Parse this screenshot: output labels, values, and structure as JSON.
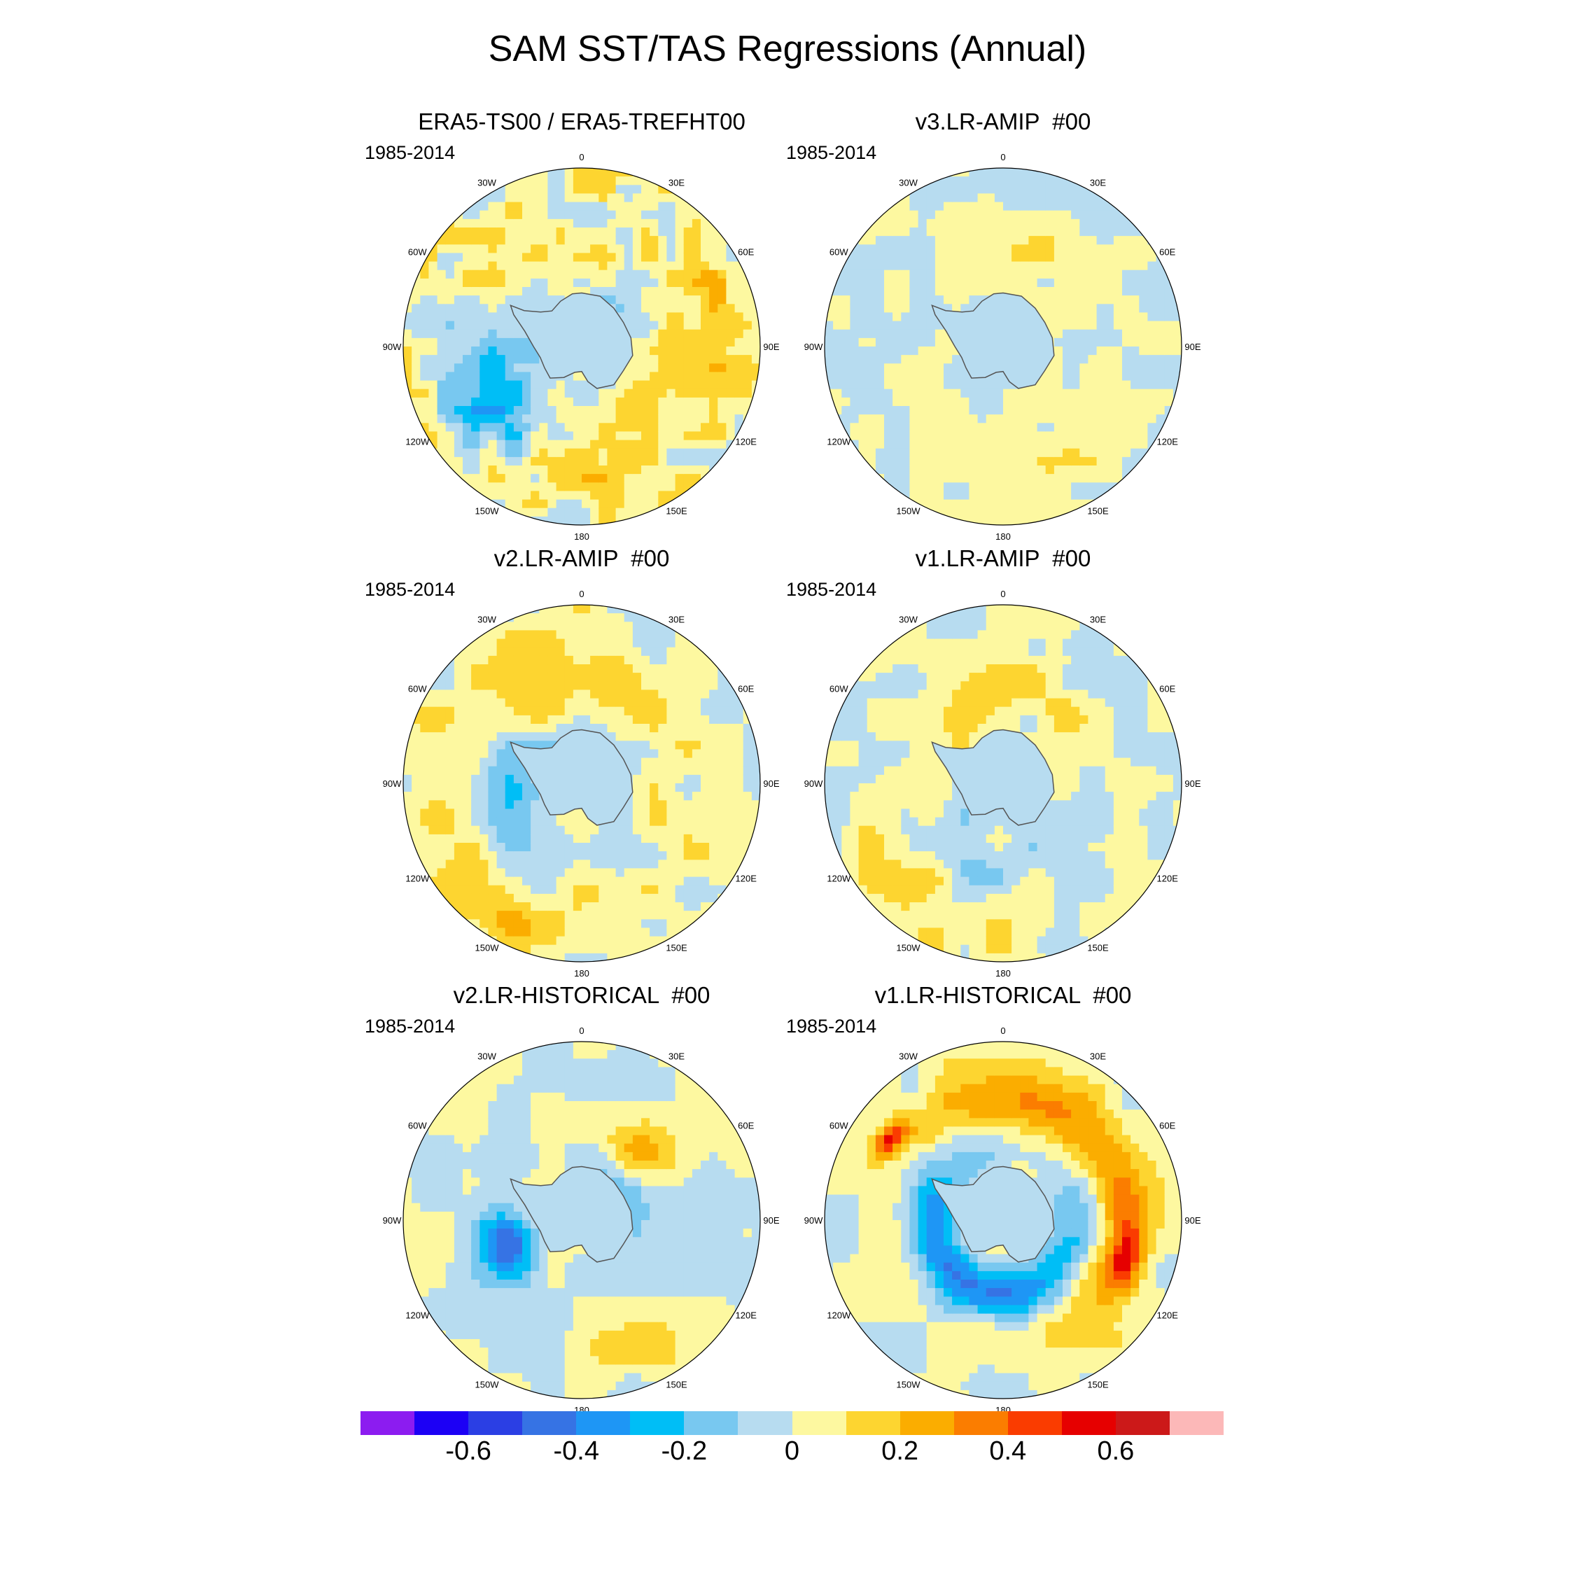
{
  "title": "SAM SST/TAS Regressions (Annual)",
  "period": "1985-2014",
  "longitude_labels": [
    "0",
    "30E",
    "60E",
    "90E",
    "120E",
    "150E",
    "180",
    "150W",
    "120W",
    "90W",
    "60W",
    "30W"
  ],
  "panels": [
    {
      "title": "ERA5-TS00 / ERA5-TREFHT00",
      "pattern": "era5"
    },
    {
      "title": "v3.LR-AMIP  #00",
      "pattern": "v3amip"
    },
    {
      "title": "v2.LR-AMIP  #00",
      "pattern": "v2amip"
    },
    {
      "title": "v1.LR-AMIP  #00",
      "pattern": "v1amip"
    },
    {
      "title": "v2.LR-HISTORICAL  #00",
      "pattern": "v2hist"
    },
    {
      "title": "v1.LR-HISTORICAL  #00",
      "pattern": "v1hist"
    }
  ],
  "colorbar": {
    "colors": [
      "#8c1cf0",
      "#1c00f5",
      "#2b3fe4",
      "#3673e4",
      "#1e96f5",
      "#00bef6",
      "#78c8f0",
      "#b7dcf0",
      "#fdf8a0",
      "#fdd530",
      "#fbad00",
      "#fb7d00",
      "#fa3c00",
      "#e60000",
      "#cc1919",
      "#fcb8b8"
    ],
    "tick_labels": [
      "-0.6",
      "-0.4",
      "-0.2",
      "0",
      "0.2",
      "0.4",
      "0.6"
    ],
    "tick_values": [
      -0.6,
      -0.4,
      -0.2,
      0,
      0.2,
      0.4,
      0.6
    ]
  }
}
